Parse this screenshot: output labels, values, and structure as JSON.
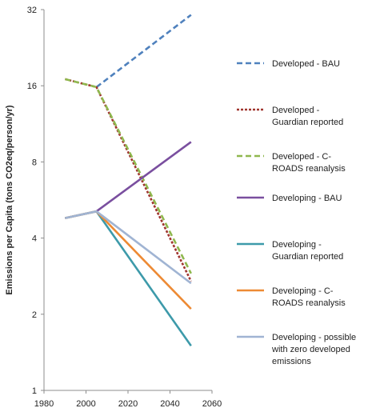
{
  "chart_data": {
    "type": "line",
    "title": "",
    "xlabel": "",
    "ylabel": "Emissions per Capita (tons CO2eq/person/yr)",
    "xlim": [
      1980,
      2060
    ],
    "x_ticks": [
      1980,
      2000,
      2020,
      2040,
      2060
    ],
    "ylim": [
      1,
      32
    ],
    "y_scale": "log2",
    "y_ticks": [
      1,
      2,
      4,
      8,
      16,
      32
    ],
    "grid": false,
    "legend_position": "right",
    "series": [
      {
        "name": "Developed - BAU",
        "legend_lines": [
          "Developed - BAU"
        ],
        "color": "#4f81bd",
        "dash": "dashed",
        "x": [
          2005,
          2050
        ],
        "y": [
          15.8,
          30.5
        ]
      },
      {
        "name": "Developed - Guardian reported",
        "legend_lines": [
          "Developed -",
          "Guardian reported"
        ],
        "color": "#a0352f",
        "dash": "dotted",
        "x": [
          1990,
          2005,
          2050
        ],
        "y": [
          17.0,
          15.8,
          2.7
        ]
      },
      {
        "name": "Developed - C-ROADS reanalysis",
        "legend_lines": [
          "Developed - C-",
          "ROADS reanalysis"
        ],
        "color": "#8fb84e",
        "dash": "dashed",
        "x": [
          1990,
          2005,
          2050
        ],
        "y": [
          17.0,
          15.8,
          2.9
        ]
      },
      {
        "name": "Developing - BAU",
        "legend_lines": [
          "Developing - BAU"
        ],
        "color": "#7a4f9f",
        "dash": "solid",
        "x": [
          1990,
          2005,
          2050
        ],
        "y": [
          4.8,
          5.1,
          9.6
        ]
      },
      {
        "name": "Developing - Guardian reported",
        "legend_lines": [
          "Developing -",
          "Guardian reported"
        ],
        "color": "#3d9aaa",
        "dash": "solid",
        "x": [
          1990,
          2005,
          2050
        ],
        "y": [
          4.8,
          5.1,
          1.5
        ]
      },
      {
        "name": "Developing - C-ROADS reanalysis",
        "legend_lines": [
          "Developing - C-",
          "ROADS reanalysis"
        ],
        "color": "#ed8a34",
        "dash": "solid",
        "x": [
          1990,
          2005,
          2050
        ],
        "y": [
          4.8,
          5.1,
          2.1
        ]
      },
      {
        "name": "Developing - possible with zero developed emissions",
        "legend_lines": [
          "Developing - possible",
          "with zero developed",
          "emissions"
        ],
        "color": "#a0b4d3",
        "dash": "solid",
        "x": [
          1990,
          2005,
          2050
        ],
        "y": [
          4.8,
          5.1,
          2.65
        ]
      }
    ]
  }
}
